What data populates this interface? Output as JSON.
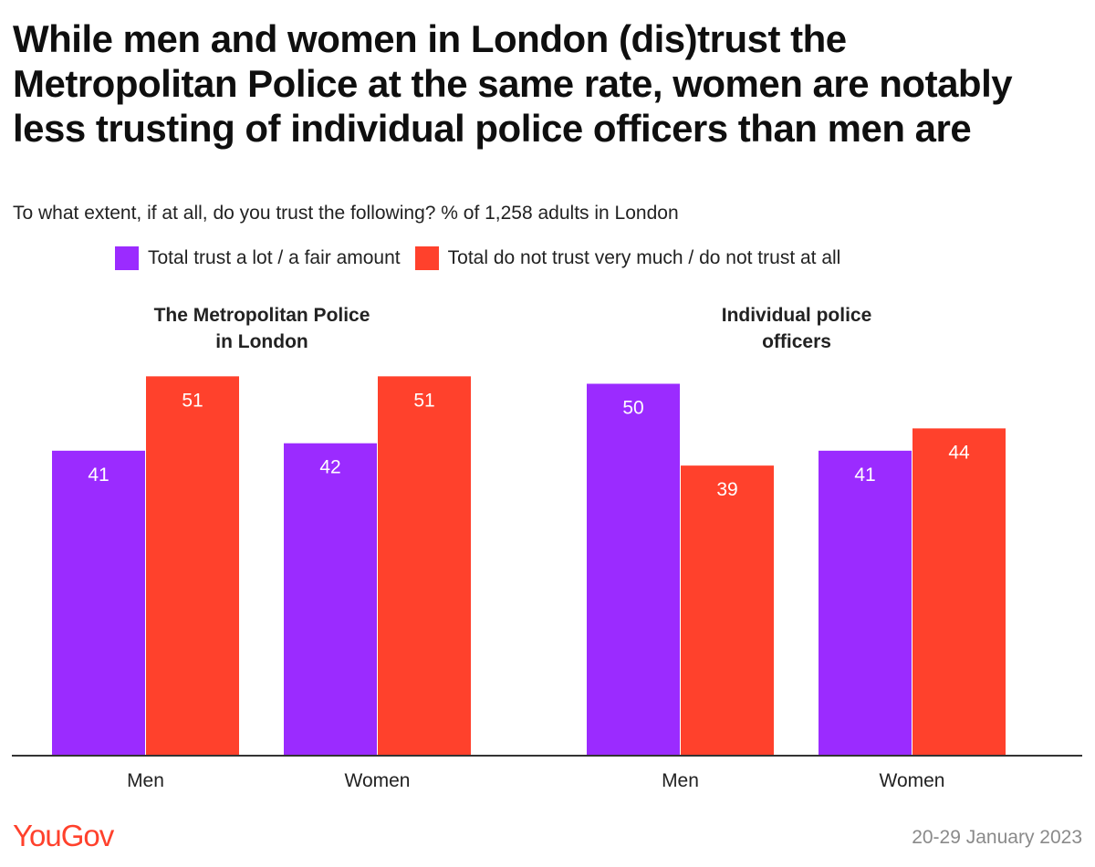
{
  "title": "While men and women in London (dis)trust the Metropolitan Police at the same rate, women are notably less trusting of individual police officers than men are",
  "subtitle": "To what extent, if at all, do you trust the following? % of 1,258 adults in London",
  "colors": {
    "trust": "#9b2bff",
    "distrust": "#ff412c",
    "axis": "#333333"
  },
  "legend": {
    "trust": "Total trust a lot / a fair amount",
    "distrust": "Total do not trust very much / do not trust at all"
  },
  "footer": {
    "brand": "YouGov",
    "date": "20-29 January 2023"
  },
  "chart_data": {
    "type": "bar",
    "ylim": [
      0,
      55
    ],
    "series_names": [
      "Total trust a lot / a fair amount",
      "Total do not trust very much / do not trust at all"
    ],
    "panels": [
      {
        "title_lines": [
          "The Metropolitan Police",
          "in London"
        ],
        "categories": [
          "Men",
          "Women"
        ],
        "series": [
          {
            "name": "Total trust a lot / a fair amount",
            "values": [
              41,
              42
            ]
          },
          {
            "name": "Total do not trust very much / do not trust at all",
            "values": [
              51,
              51
            ]
          }
        ]
      },
      {
        "title_lines": [
          "Individual police",
          "officers"
        ],
        "categories": [
          "Men",
          "Women"
        ],
        "series": [
          {
            "name": "Total trust a lot / a fair amount",
            "values": [
              50,
              41
            ]
          },
          {
            "name": "Total do not trust very much / do not trust at all",
            "values": [
              39,
              44
            ]
          }
        ]
      }
    ]
  }
}
